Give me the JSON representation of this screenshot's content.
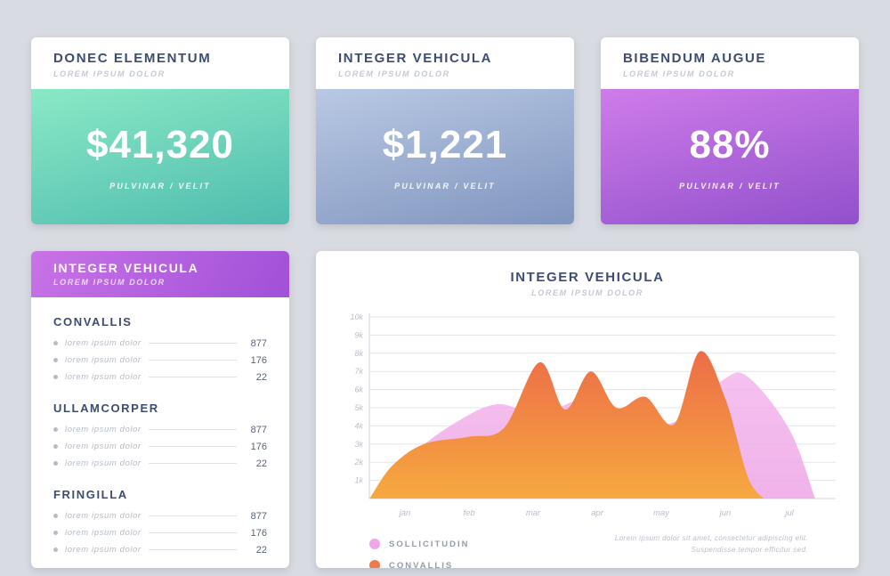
{
  "theme": {
    "page_bg": "#d8dbe1",
    "card_bg": "#ffffff",
    "heading_color": "#3e4c72",
    "muted_color": "#c5c9d3",
    "list_value_color": "#5a6375",
    "grid_color": "#e2e5ea",
    "axis_line_color": "#d3d6dc",
    "axis_label_color": "#b9bec9"
  },
  "stat_cards": [
    {
      "title": "DONEC ELEMENTUM",
      "subtitle": "LOREM IPSUM DOLOR",
      "value": "$41,320",
      "caption": "PULVINAR / VELIT",
      "gradient": [
        "#8ae9c6",
        "#4fbcae"
      ]
    },
    {
      "title": "INTEGER VEHICULA",
      "subtitle": "LOREM IPSUM DOLOR",
      "value": "$1,221",
      "caption": "PULVINAR / VELIT",
      "gradient": [
        "#b9c9e4",
        "#8095bf"
      ]
    },
    {
      "title": "BIBENDUM AUGUE",
      "subtitle": "LOREM IPSUM DOLOR",
      "value": "88%",
      "caption": "PULVINAR / VELIT",
      "gradient": [
        "#cf7cea",
        "#9150cb"
      ]
    }
  ],
  "list_card": {
    "title": "INTEGER VEHICULA",
    "subtitle": "LOREM IPSUM DOLOR",
    "gradient": [
      "#c873e6",
      "#a150d8"
    ],
    "sections": [
      {
        "name": "CONVALLIS",
        "rows": [
          {
            "label": "lorem ipsum dolor",
            "value": "877"
          },
          {
            "label": "lorem ipsum dolor",
            "value": "176"
          },
          {
            "label": "lorem ipsum dolor",
            "value": "22"
          }
        ]
      },
      {
        "name": "ULLAMCORPER",
        "rows": [
          {
            "label": "lorem ipsum dolor",
            "value": "877"
          },
          {
            "label": "lorem ipsum dolor",
            "value": "176"
          },
          {
            "label": "lorem ipsum dolor",
            "value": "22"
          }
        ]
      },
      {
        "name": "FRINGILLA",
        "rows": [
          {
            "label": "lorem ipsum dolor",
            "value": "877"
          },
          {
            "label": "lorem ipsum dolor",
            "value": "176"
          },
          {
            "label": "lorem ipsum dolor",
            "value": "22"
          }
        ]
      }
    ]
  },
  "chart_card": {
    "title": "INTEGER VEHICULA",
    "subtitle": "LOREM IPSUM DOLOR",
    "note_lines": [
      "Lorem ipsum dolor sit amet, consectetur adipiscing elit.",
      "Suspendisse tempor efficitur sed."
    ],
    "legend": [
      {
        "label": "SOLLICITUDIN",
        "color": "#efa7e7"
      },
      {
        "label": "CONVALLIS",
        "color": "#f0794b"
      }
    ]
  },
  "chart_data": {
    "type": "area",
    "title": "INTEGER VEHICULA",
    "x_ticks": [
      "jan",
      "feb",
      "mar",
      "apr",
      "may",
      "jun",
      "jul"
    ],
    "y_ticks": [
      "1k",
      "2k",
      "3k",
      "4k",
      "5k",
      "6k",
      "7k",
      "8k",
      "9k",
      "10k"
    ],
    "ylim": [
      0,
      10000
    ],
    "y_unit": "thousands",
    "x_unit": "month index (0 = jan)",
    "grid": "horizontal",
    "legend_position": "bottom-left",
    "series": [
      {
        "name": "SOLLICITUDIN",
        "fill_top": "#f6bff0",
        "fill_bottom": "#eda4e5",
        "opacity": 0.85,
        "points": [
          [
            -0.55,
            0
          ],
          [
            0.1,
            2.4
          ],
          [
            0.8,
            4.2
          ],
          [
            1.45,
            5.2
          ],
          [
            2.1,
            4.6
          ],
          [
            2.75,
            5.4
          ],
          [
            3.4,
            4.4
          ],
          [
            4.2,
            4.2
          ],
          [
            4.95,
            6.5
          ],
          [
            5.35,
            6.7
          ],
          [
            6.0,
            3.8
          ],
          [
            6.4,
            0
          ]
        ]
      },
      {
        "name": "CONVALLIS",
        "fill_top": "#ea5f4a",
        "fill_bottom": "#f6a93f",
        "opacity": 1,
        "points": [
          [
            -0.55,
            0
          ],
          [
            -0.2,
            1.8
          ],
          [
            0.3,
            3.0
          ],
          [
            1.0,
            3.4
          ],
          [
            1.55,
            3.9
          ],
          [
            2.1,
            7.5
          ],
          [
            2.5,
            4.9
          ],
          [
            2.9,
            7.0
          ],
          [
            3.3,
            5.0
          ],
          [
            3.75,
            5.6
          ],
          [
            4.2,
            4.1
          ],
          [
            4.6,
            8.1
          ],
          [
            5.0,
            5.5
          ],
          [
            5.35,
            1.2
          ],
          [
            5.6,
            0
          ]
        ]
      }
    ]
  }
}
